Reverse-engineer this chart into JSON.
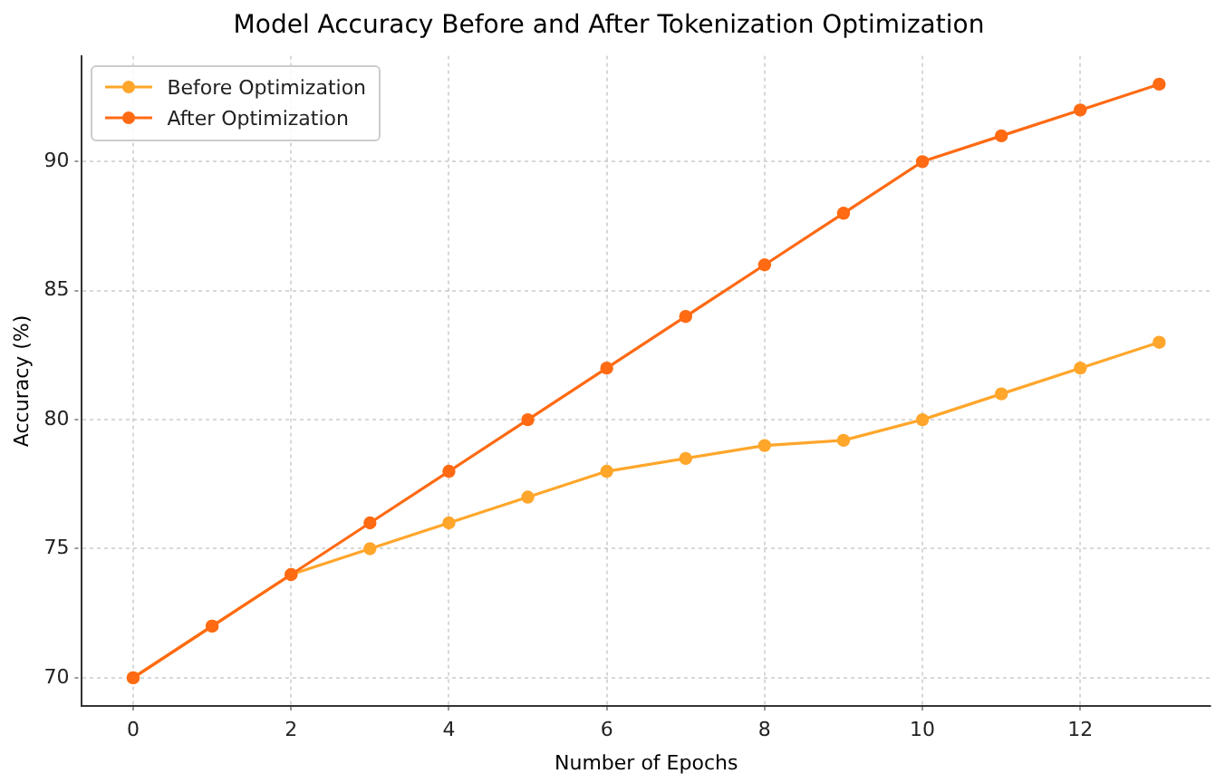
{
  "chart_data": {
    "type": "line",
    "title": "Model Accuracy Before and After Tokenization Optimization",
    "xlabel": "Number of Epochs",
    "ylabel": "Accuracy (%)",
    "x": [
      0,
      1,
      2,
      3,
      4,
      5,
      6,
      7,
      8,
      9,
      10,
      11,
      12,
      13
    ],
    "series": [
      {
        "name": "Before Optimization",
        "color": "#ffa62b",
        "values": [
          70,
          72,
          74,
          75,
          76,
          77,
          78,
          78.5,
          79,
          79.2,
          80,
          81,
          82,
          83
        ]
      },
      {
        "name": "After Optimization",
        "color": "#ff6a13",
        "values": [
          70,
          72,
          74,
          76,
          78,
          80,
          82,
          84,
          86,
          88,
          90,
          91,
          92,
          93
        ]
      }
    ],
    "xlim": [
      -0.65,
      13.65
    ],
    "xticks": [
      0,
      2,
      4,
      6,
      8,
      10,
      12
    ],
    "ylim": [
      68.9,
      94.1
    ],
    "yticks": [
      70,
      75,
      80,
      85,
      90
    ],
    "grid": true,
    "legend": "top left",
    "marker": "circle",
    "line_style": "solid"
  }
}
